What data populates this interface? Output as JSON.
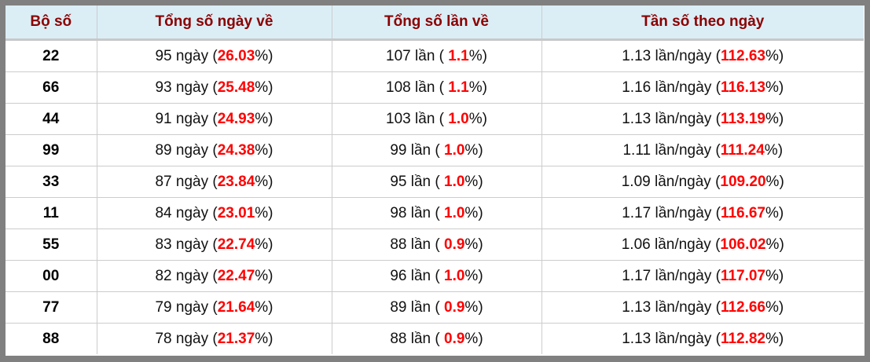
{
  "table": {
    "headers": [
      "Bộ số",
      "Tổng số ngày về",
      "Tổng số lần về",
      "Tần số theo ngày"
    ],
    "accent_color": "#ff0000",
    "header_color": "#8b0000",
    "rows": [
      {
        "pair": "22",
        "days": "95 ngày",
        "days_pct": "26.03",
        "times": "107 lần",
        "times_pct": "1.1",
        "freq": "1.13 lần/ngày",
        "freq_pct": "112.63"
      },
      {
        "pair": "66",
        "days": "93 ngày",
        "days_pct": "25.48",
        "times": "108 lần",
        "times_pct": "1.1",
        "freq": "1.16 lần/ngày",
        "freq_pct": "116.13"
      },
      {
        "pair": "44",
        "days": "91 ngày",
        "days_pct": "24.93",
        "times": "103 lần",
        "times_pct": "1.0",
        "freq": "1.13 lần/ngày",
        "freq_pct": "113.19"
      },
      {
        "pair": "99",
        "days": "89 ngày",
        "days_pct": "24.38",
        "times": "99 lần",
        "times_pct": "1.0",
        "freq": "1.11 lần/ngày",
        "freq_pct": "111.24"
      },
      {
        "pair": "33",
        "days": "87 ngày",
        "days_pct": "23.84",
        "times": "95 lần",
        "times_pct": "1.0",
        "freq": "1.09 lần/ngày",
        "freq_pct": "109.20"
      },
      {
        "pair": "11",
        "days": "84 ngày",
        "days_pct": "23.01",
        "times": "98 lần",
        "times_pct": "1.0",
        "freq": "1.17 lần/ngày",
        "freq_pct": "116.67"
      },
      {
        "pair": "55",
        "days": "83 ngày",
        "days_pct": "22.74",
        "times": "88 lần",
        "times_pct": "0.9",
        "freq": "1.06 lần/ngày",
        "freq_pct": "106.02"
      },
      {
        "pair": "00",
        "days": "82 ngày",
        "days_pct": "22.47",
        "times": "96 lần",
        "times_pct": "1.0",
        "freq": "1.17 lần/ngày",
        "freq_pct": "117.07"
      },
      {
        "pair": "77",
        "days": "79 ngày",
        "days_pct": "21.64",
        "times": "89 lần",
        "times_pct": "0.9",
        "freq": "1.13 lần/ngày",
        "freq_pct": "112.66"
      },
      {
        "pair": "88",
        "days": "78 ngày",
        "days_pct": "21.37",
        "times": "88 lần",
        "times_pct": "0.9",
        "freq": "1.13 lần/ngày",
        "freq_pct": "112.82"
      }
    ]
  }
}
